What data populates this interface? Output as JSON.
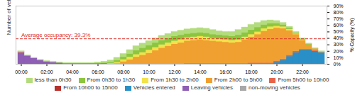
{
  "chart_data": {
    "type": "bar",
    "stacked": true,
    "legend": "bottom",
    "left_label": "Number of vehicles",
    "ylabel": "% Capacity (%)",
    "ylim": [
      0,
      90
    ],
    "yticks": [
      {
        "value": 0,
        "label": "0%"
      },
      {
        "value": 10,
        "label": "10%"
      },
      {
        "value": 20,
        "label": "20%"
      },
      {
        "value": 30,
        "label": "30%"
      },
      {
        "value": 40,
        "label": "40%"
      },
      {
        "value": 50,
        "label": "50%"
      },
      {
        "value": 60,
        "label": "60%"
      },
      {
        "value": 70,
        "label": "70%"
      },
      {
        "value": 80,
        "label": "80%"
      },
      {
        "value": 90,
        "label": "90%"
      }
    ],
    "average": {
      "value": 39.3,
      "label": "Average occupancy: 39.3%",
      "color": "#e0302a"
    },
    "categories": [
      "00:00",
      null,
      null,
      null,
      "02:00",
      null,
      null,
      null,
      "04:00",
      null,
      null,
      null,
      "06:00",
      null,
      null,
      null,
      "08:00",
      null,
      null,
      null,
      "10:00",
      null,
      null,
      null,
      "12:00",
      null,
      null,
      null,
      "14:00",
      null,
      null,
      null,
      "16:00",
      null,
      null,
      null,
      "18:00",
      null,
      null,
      null,
      "20:00",
      null,
      null,
      null,
      "22:00",
      null,
      null,
      null
    ],
    "series": [
      {
        "name": "less than 0h30",
        "color": "#b3dc7e",
        "values": [
          1,
          1,
          1,
          1,
          1,
          1,
          1,
          1,
          1,
          1,
          1,
          1,
          2,
          2,
          3,
          4,
          5,
          6,
          7,
          7,
          7,
          7,
          7,
          7,
          7,
          7,
          7,
          7,
          7,
          7,
          7,
          6,
          6,
          7,
          8,
          8,
          8,
          7,
          6,
          5,
          4,
          3,
          2,
          2,
          1,
          1,
          1,
          1
        ]
      },
      {
        "name": "From 0h30 to 1h30",
        "color": "#8cc63f",
        "values": [
          0,
          0,
          0,
          0,
          0,
          0,
          0,
          0,
          0,
          0,
          0,
          0,
          0,
          1,
          2,
          3,
          4,
          5,
          6,
          7,
          7,
          7,
          7,
          7,
          7,
          7,
          6,
          6,
          6,
          6,
          6,
          6,
          6,
          6,
          7,
          7,
          7,
          7,
          6,
          5,
          4,
          3,
          2,
          1,
          1,
          1,
          0,
          0
        ]
      },
      {
        "name": "From 1h30 to 2h00",
        "color": "#f2e24b",
        "values": [
          0,
          0,
          0,
          0,
          0,
          0,
          0,
          0,
          0,
          0,
          0,
          0,
          0,
          0,
          1,
          2,
          3,
          4,
          4,
          4,
          5,
          5,
          5,
          5,
          5,
          5,
          5,
          5,
          5,
          5,
          4,
          4,
          4,
          4,
          4,
          4,
          4,
          4,
          4,
          4,
          3,
          3,
          2,
          1,
          1,
          0,
          0,
          0
        ]
      },
      {
        "name": "From 2h00 to 5h00",
        "color": "#f0a030",
        "values": [
          1,
          0,
          0,
          0,
          0,
          0,
          0,
          0,
          0,
          0,
          0,
          0,
          0,
          0,
          0,
          1,
          4,
          7,
          11,
          14,
          17,
          21,
          25,
          28,
          31,
          33,
          35,
          36,
          37,
          36,
          35,
          34,
          33,
          32,
          33,
          37,
          40,
          44,
          49,
          52,
          51,
          47,
          38,
          26,
          14,
          7,
          3,
          1
        ]
      },
      {
        "name": "From 5h00 to 10h00",
        "color": "#e8634a",
        "values": [
          0,
          0,
          0,
          0,
          0,
          0,
          0,
          0,
          0,
          0,
          0,
          0,
          0,
          0,
          0,
          0,
          0,
          0,
          0,
          0,
          0,
          0,
          0,
          0,
          0,
          0,
          1,
          1,
          1,
          1,
          1,
          1,
          1,
          1,
          1,
          1,
          2,
          2,
          2,
          2,
          2,
          2,
          2,
          2,
          1,
          1,
          1,
          0
        ]
      },
      {
        "name": "From 10h00 to 15h00",
        "color": "#b8302a",
        "values": [
          0,
          0,
          0,
          0,
          0,
          0,
          0,
          0,
          0,
          0,
          0,
          0,
          0,
          0,
          0,
          0,
          0,
          0,
          0,
          0,
          0,
          0,
          0,
          0,
          0,
          0,
          0,
          0,
          0,
          0,
          0,
          0,
          0,
          0,
          0,
          0,
          0,
          0,
          0,
          0,
          0,
          0,
          0,
          0,
          0,
          0,
          0,
          0
        ]
      },
      {
        "name": "Vehicles entered",
        "color": "#2a8fc7",
        "values": [
          0,
          0,
          0,
          0,
          0,
          0,
          0,
          0,
          0,
          0,
          0,
          0,
          0,
          0,
          0,
          0,
          0,
          0,
          0,
          0,
          0,
          0,
          0,
          0,
          0,
          0,
          0,
          0,
          0,
          0,
          0,
          0,
          0,
          0,
          0,
          0,
          0,
          0,
          0,
          0,
          3,
          6,
          12,
          18,
          22,
          22,
          20,
          18
        ]
      },
      {
        "name": "Leaving vehicles",
        "color": "#8e5fb5",
        "values": [
          18,
          13,
          9,
          6,
          4,
          3,
          2,
          1,
          1,
          1,
          1,
          1,
          1,
          1,
          0,
          0,
          0,
          0,
          0,
          0,
          0,
          0,
          0,
          0,
          0,
          0,
          0,
          0,
          0,
          0,
          0,
          0,
          0,
          0,
          0,
          0,
          0,
          0,
          0,
          0,
          0,
          0,
          0,
          0,
          0,
          0,
          0,
          0
        ]
      },
      {
        "name": "non-moving vehicles",
        "color": "#a8a8a8",
        "values": [
          0,
          0,
          0,
          0,
          0,
          0,
          0,
          0,
          0,
          0,
          0,
          0,
          0,
          0,
          0,
          0,
          0,
          0,
          0,
          0,
          0,
          0,
          0,
          0,
          0,
          0,
          0,
          0,
          0,
          0,
          0,
          0,
          0,
          0,
          0,
          0,
          0,
          0,
          0,
          0,
          0,
          0,
          0,
          0,
          0,
          0,
          0,
          0
        ]
      }
    ]
  }
}
